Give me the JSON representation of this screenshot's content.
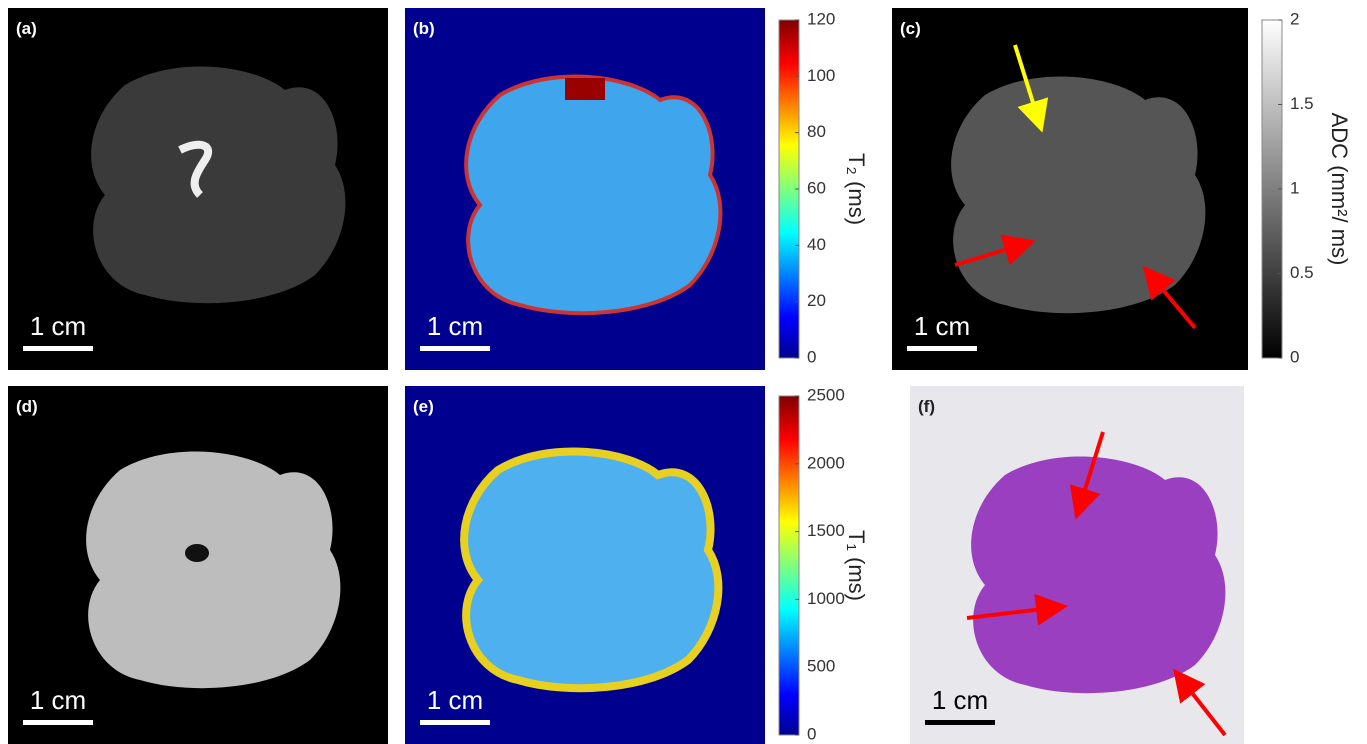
{
  "panels": [
    {
      "label": "(a)",
      "scale_bar": "1 cm"
    },
    {
      "label": "(b)",
      "scale_bar": "1 cm"
    },
    {
      "label": "(c)",
      "scale_bar": "1 cm"
    },
    {
      "label": "(d)",
      "scale_bar": "1 cm"
    },
    {
      "label": "(e)",
      "scale_bar": "1 cm"
    },
    {
      "label": "(f)",
      "scale_bar": "1 cm"
    }
  ],
  "colorbars": [
    {
      "label": "T₂ (ms)",
      "lim": [
        0,
        120
      ],
      "ticks": [
        0,
        20,
        40,
        60,
        80,
        100,
        120
      ],
      "colormap": "jet"
    },
    {
      "label": "ADC (mm²/ ms)",
      "lim": [
        0,
        2
      ],
      "ticks": [
        0,
        0.5,
        1,
        1.5,
        2
      ],
      "colormap": "gray"
    },
    {
      "label": "T₁ (ms)",
      "lim": [
        0,
        2500
      ],
      "ticks": [
        0,
        500,
        1000,
        1500,
        2000,
        2500
      ],
      "colormap": "jet"
    }
  ]
}
